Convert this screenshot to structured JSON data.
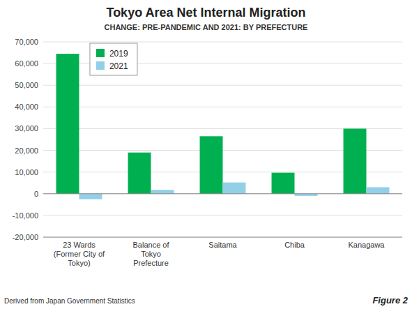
{
  "chart_data": {
    "type": "bar",
    "title": "Tokyo Area Net Internal Migration",
    "subtitle": "CHANGE: PRE-PANDEMIC AND 2021: BY PREFECTURE",
    "categories": [
      "23 Wards\n(Former City of\nTokyo)",
      "Balance of\nTokyo\nPrefecture",
      "Saitama",
      "Chiba",
      "Kanagawa"
    ],
    "series": [
      {
        "name": "2019",
        "color": "#00b050",
        "values": [
          64500,
          19000,
          26500,
          9700,
          30000
        ]
      },
      {
        "name": "2021",
        "color": "#92d0e8",
        "values": [
          -2500,
          1800,
          5200,
          -1000,
          3000
        ]
      }
    ],
    "ylim": [
      -20000,
      70000
    ],
    "yticks": [
      {
        "value": -20000,
        "label": "-20,000"
      },
      {
        "value": -10000,
        "label": "-10,000"
      },
      0,
      {
        "value": 10000,
        "label": "10,000"
      },
      {
        "value": 20000,
        "label": "20,000"
      },
      {
        "value": 30000,
        "label": "30,000"
      },
      {
        "value": 40000,
        "label": "40,000"
      },
      {
        "value": 50000,
        "label": "50,000"
      },
      {
        "value": 60000,
        "label": "60,000"
      },
      {
        "value": 70000,
        "label": "70,000"
      }
    ],
    "grid": true,
    "legend": "upper left",
    "annotations": [
      "Derived from Japan Government Statistics",
      "Figure 2"
    ]
  }
}
